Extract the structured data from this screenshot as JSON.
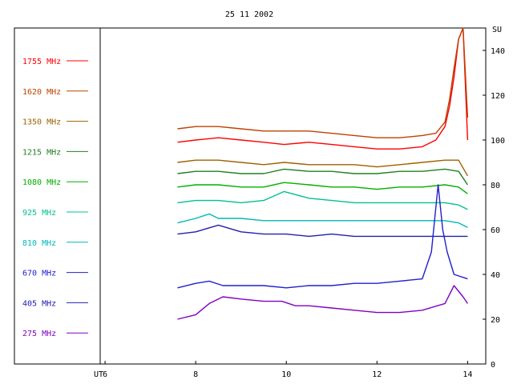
{
  "chart_data": {
    "type": "line",
    "title": "25 11 2002",
    "xlabel": "UT",
    "ylabel": "SU",
    "xlim": [
      4,
      14.4
    ],
    "ylim": [
      0,
      150
    ],
    "xticks": [
      6,
      8,
      10,
      12,
      14
    ],
    "yticks": [
      0,
      20,
      40,
      60,
      80,
      100,
      120,
      140
    ],
    "legend_position": "left",
    "series": [
      {
        "name": "1755 MHz",
        "color": "#ff0000",
        "x": [
          7.6,
          8.0,
          8.5,
          9.0,
          9.5,
          9.95,
          10.5,
          11.0,
          11.5,
          12.0,
          12.5,
          13.0,
          13.3,
          13.5,
          13.6,
          13.7,
          13.8,
          13.9,
          14.0
        ],
        "y": [
          99,
          100,
          101,
          100,
          99,
          98,
          99,
          98,
          97,
          96,
          96,
          97,
          100,
          106,
          115,
          128,
          145,
          150,
          100
        ]
      },
      {
        "name": "1620 MHz",
        "color": "#c04000",
        "x": [
          7.6,
          8.0,
          8.5,
          9.0,
          9.5,
          9.95,
          10.5,
          11.0,
          11.5,
          12.0,
          12.5,
          13.0,
          13.3,
          13.5,
          13.6,
          13.7,
          13.8,
          13.9,
          14.0
        ],
        "y": [
          105,
          106,
          106,
          105,
          104,
          104,
          104,
          103,
          102,
          101,
          101,
          102,
          103,
          108,
          118,
          132,
          145,
          150,
          110
        ]
      },
      {
        "name": "1350 MHz",
        "color": "#a06000",
        "x": [
          7.6,
          8.0,
          8.5,
          9.0,
          9.5,
          9.95,
          10.5,
          11.0,
          11.5,
          12.0,
          12.5,
          13.0,
          13.5,
          13.8,
          14.0
        ],
        "y": [
          90,
          91,
          91,
          90,
          89,
          90,
          89,
          89,
          89,
          88,
          89,
          90,
          91,
          91,
          84
        ]
      },
      {
        "name": "1215 MHz",
        "color": "#208020",
        "x": [
          7.6,
          8.0,
          8.5,
          9.0,
          9.5,
          9.95,
          10.5,
          11.0,
          11.5,
          12.0,
          12.5,
          13.0,
          13.5,
          13.8,
          14.0
        ],
        "y": [
          85,
          86,
          86,
          85,
          85,
          87,
          86,
          86,
          85,
          85,
          86,
          86,
          87,
          86,
          80
        ]
      },
      {
        "name": "1080 MHz",
        "color": "#00b000",
        "x": [
          7.6,
          8.0,
          8.5,
          9.0,
          9.5,
          9.95,
          10.5,
          11.0,
          11.5,
          12.0,
          12.5,
          13.0,
          13.5,
          13.8,
          14.0
        ],
        "y": [
          79,
          80,
          80,
          79,
          79,
          81,
          80,
          79,
          79,
          78,
          79,
          79,
          80,
          79,
          76
        ]
      },
      {
        "name": "925 MHz",
        "color": "#00c090",
        "x": [
          7.6,
          8.0,
          8.5,
          9.0,
          9.5,
          9.95,
          10.5,
          11.0,
          11.5,
          12.0,
          12.5,
          13.0,
          13.5,
          13.8,
          14.0
        ],
        "y": [
          72,
          73,
          73,
          72,
          73,
          77,
          74,
          73,
          72,
          72,
          72,
          72,
          72,
          71,
          69
        ]
      },
      {
        "name": "810 MHz",
        "color": "#00b8b8",
        "x": [
          7.6,
          8.0,
          8.3,
          8.5,
          9.0,
          9.5,
          10.0,
          10.5,
          11.0,
          11.5,
          12.0,
          12.5,
          13.0,
          13.5,
          13.8,
          14.0
        ],
        "y": [
          63,
          65,
          67,
          65,
          65,
          64,
          64,
          64,
          64,
          64,
          64,
          64,
          64,
          64,
          63,
          61
        ]
      },
      {
        "name": "670 MHz",
        "color": "#2020d0",
        "x": [
          7.6,
          8.0,
          8.3,
          8.6,
          9.0,
          9.5,
          10.0,
          10.5,
          11.0,
          11.5,
          12.0,
          12.5,
          13.0,
          13.2,
          13.35,
          13.45,
          13.55,
          13.7,
          14.0
        ],
        "y": [
          34,
          36,
          37,
          35,
          35,
          35,
          34,
          35,
          35,
          36,
          36,
          37,
          38,
          50,
          80,
          60,
          50,
          40,
          38
        ]
      },
      {
        "name": "405 MHz",
        "color": "#2020b0",
        "x": [
          7.6,
          8.0,
          8.5,
          9.0,
          9.5,
          10.0,
          10.5,
          11.0,
          11.5,
          12.0,
          12.5,
          13.0,
          13.5,
          14.0
        ],
        "y": [
          58,
          59,
          62,
          59,
          58,
          58,
          57,
          58,
          57,
          57,
          57,
          57,
          57,
          57
        ]
      },
      {
        "name": "275 MHz",
        "color": "#8000c0",
        "x": [
          7.6,
          8.0,
          8.3,
          8.6,
          9.0,
          9.5,
          9.9,
          10.2,
          10.5,
          11.0,
          11.5,
          12.0,
          12.5,
          13.0,
          13.5,
          13.7,
          13.9,
          14.0
        ],
        "y": [
          20,
          22,
          27,
          30,
          29,
          28,
          28,
          26,
          26,
          25,
          24,
          23,
          23,
          24,
          27,
          35,
          30,
          27
        ]
      }
    ]
  }
}
